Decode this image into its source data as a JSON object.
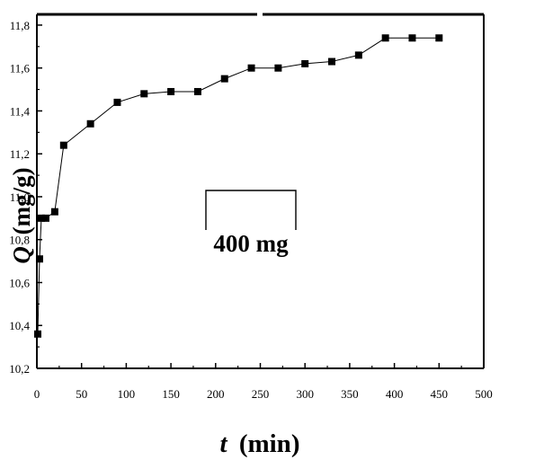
{
  "chart_data": {
    "type": "line",
    "xlabel_var": "t",
    "xlabel_unit": "(min)",
    "ylabel_var": "Q",
    "ylabel_unit": "(mg/g)",
    "xlim": [
      0,
      500
    ],
    "ylim": [
      10.2,
      11.85
    ],
    "xticks": [
      "0",
      "50",
      "100",
      "150",
      "200",
      "250",
      "300",
      "350",
      "400",
      "450",
      "500"
    ],
    "yticks": [
      "10,2",
      "10,4",
      "10,6",
      "10,8",
      "11,0",
      "11,2",
      "11,4",
      "11,6",
      "11,8"
    ],
    "annotation": "400 mg",
    "grid": false,
    "series": [
      {
        "x": [
          1,
          3,
          5,
          10,
          20,
          30,
          60,
          90,
          120,
          150,
          180,
          210,
          240,
          270,
          300,
          330,
          360,
          390,
          420,
          450
        ],
        "y": [
          10.36,
          10.71,
          10.9,
          10.9,
          10.93,
          11.24,
          11.34,
          11.44,
          11.48,
          11.49,
          11.49,
          11.55,
          11.6,
          11.6,
          11.62,
          11.63,
          11.66,
          11.74,
          11.74,
          11.74
        ],
        "marker": "square",
        "color": "#000000"
      }
    ]
  }
}
